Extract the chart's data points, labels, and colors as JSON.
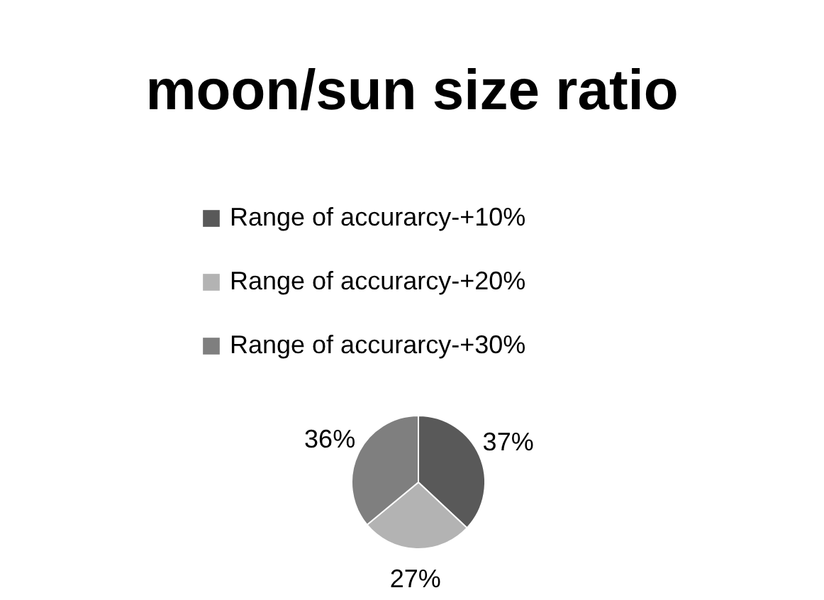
{
  "chart_data": {
    "type": "pie",
    "title": "moon/sun size ratio",
    "categories": [
      "Range of accurarcy-+10%",
      "Range of accurarcy-+20%",
      "Range of accurarcy-+30%"
    ],
    "values": [
      37,
      27,
      36
    ],
    "colors": [
      "#595959",
      "#b3b3b3",
      "#7f7f7f"
    ],
    "value_labels": [
      "37%",
      "27%",
      "36%"
    ],
    "legend": "top"
  }
}
